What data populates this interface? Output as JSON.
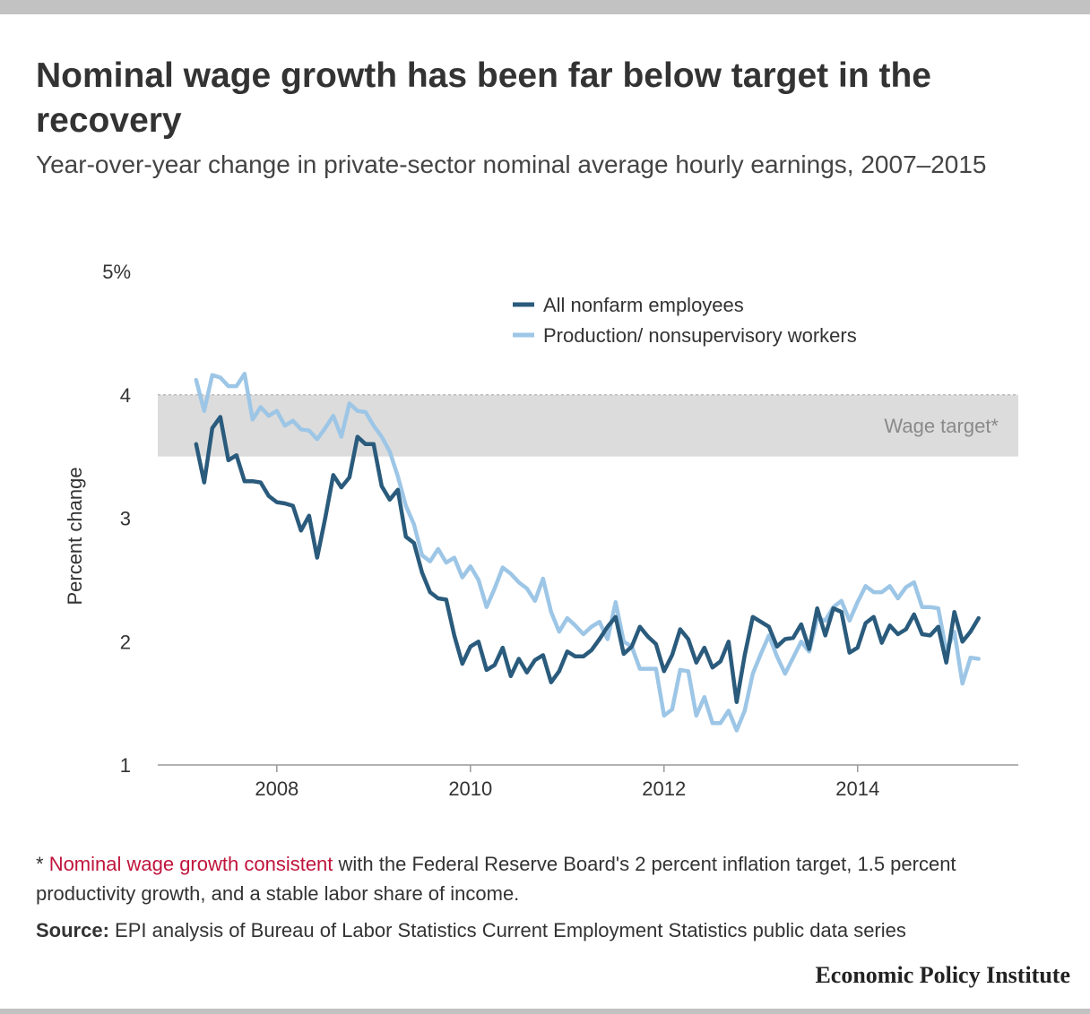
{
  "title": "Nominal wage growth has been far below target in the recovery",
  "subtitle": "Year-over-year change in private-sector nominal average hourly earnings, 2007–2015",
  "footnote": {
    "marker": "* ",
    "link_text": "Nominal wage growth consistent",
    "rest": " with the Federal Reserve Board's 2 percent inflation target, 1.5 percent productivity growth, and a stable labor share of income."
  },
  "source": {
    "label": "Source:",
    "text": " EPI analysis of Bureau of Labor Statistics Current Employment Statistics public data series"
  },
  "brand": "Economic Policy Institute",
  "colors": {
    "all": "#2a5b7c",
    "production": "#9dc6e6",
    "band": "#dcdcdc",
    "text": "#333333",
    "link": "#c0143c"
  },
  "chart_data": {
    "type": "line",
    "ylabel": "Percent change",
    "ylim": [
      1,
      5
    ],
    "yticks": [
      1,
      2,
      3,
      4,
      5
    ],
    "ytick_labels": [
      "1",
      "2",
      "3",
      "4",
      "5%"
    ],
    "xlim": [
      2006.77,
      2015.66
    ],
    "xticks": [
      2008,
      2010,
      2012,
      2014
    ],
    "xtick_labels": [
      "2008",
      "2010",
      "2012",
      "2014"
    ],
    "grid": false,
    "legend": "top-right",
    "band": {
      "label": "Wage target*",
      "from": 3.5,
      "to": 4.0
    },
    "x_start": "2007-03",
    "x_end": "2015-04",
    "series": [
      {
        "name": "All nonfarm employees",
        "color": "#2a5b7c",
        "values": [
          3.6,
          3.29,
          3.73,
          3.82,
          3.47,
          3.51,
          3.3,
          3.3,
          3.29,
          3.18,
          3.13,
          3.12,
          3.1,
          2.9,
          3.02,
          2.68,
          3.0,
          3.35,
          3.25,
          3.33,
          3.66,
          3.6,
          3.6,
          3.26,
          3.15,
          3.23,
          2.85,
          2.8,
          2.56,
          2.4,
          2.35,
          2.34,
          2.05,
          1.82,
          1.96,
          2.0,
          1.77,
          1.81,
          1.95,
          1.72,
          1.86,
          1.75,
          1.85,
          1.89,
          1.67,
          1.76,
          1.92,
          1.88,
          1.88,
          1.93,
          2.02,
          2.12,
          2.2,
          1.9,
          1.96,
          2.12,
          2.04,
          1.98,
          1.76,
          1.89,
          2.1,
          2.02,
          1.83,
          1.95,
          1.79,
          1.84,
          2.0,
          1.51,
          1.89,
          2.2,
          2.16,
          2.12,
          1.96,
          2.02,
          2.03,
          2.14,
          1.94,
          2.27,
          2.05,
          2.27,
          2.24,
          1.91,
          1.95,
          2.15,
          2.2,
          1.99,
          2.13,
          2.06,
          2.1,
          2.22,
          2.06,
          2.05,
          2.12,
          1.83,
          2.24,
          2.0,
          2.08,
          2.19
        ]
      },
      {
        "name": "Production/ nonsupervisory workers",
        "color": "#9dc6e6",
        "values": [
          4.12,
          3.87,
          4.16,
          4.14,
          4.07,
          4.07,
          4.17,
          3.8,
          3.9,
          3.83,
          3.87,
          3.75,
          3.79,
          3.72,
          3.71,
          3.64,
          3.73,
          3.83,
          3.66,
          3.93,
          3.87,
          3.86,
          3.75,
          3.66,
          3.54,
          3.34,
          3.1,
          2.95,
          2.7,
          2.65,
          2.75,
          2.64,
          2.68,
          2.52,
          2.61,
          2.5,
          2.28,
          2.43,
          2.6,
          2.55,
          2.48,
          2.43,
          2.33,
          2.51,
          2.24,
          2.08,
          2.19,
          2.13,
          2.06,
          2.12,
          2.16,
          2.02,
          2.32,
          2.0,
          1.96,
          1.78,
          1.78,
          1.78,
          1.4,
          1.45,
          1.77,
          1.76,
          1.4,
          1.55,
          1.34,
          1.34,
          1.44,
          1.28,
          1.44,
          1.74,
          1.9,
          2.05,
          1.88,
          1.74,
          1.87,
          2.0,
          1.92,
          2.19,
          2.17,
          2.28,
          2.33,
          2.17,
          2.32,
          2.45,
          2.4,
          2.4,
          2.45,
          2.35,
          2.44,
          2.48,
          2.28,
          2.28,
          2.27,
          1.92,
          2.08,
          1.66,
          1.87,
          1.86
        ]
      }
    ]
  }
}
